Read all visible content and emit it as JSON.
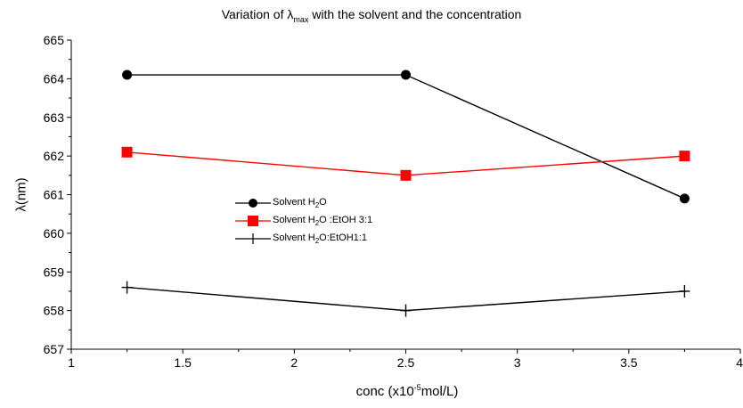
{
  "chart_data": {
    "type": "line",
    "title_prefix": "Variation of λ",
    "title_sub": "max",
    "title_suffix": " with the solvent and the concentration",
    "xlabel_prefix": "conc (x10",
    "xlabel_sup": "-5",
    "xlabel_suffix": "mol/L)",
    "ylabel": "λ(nm)",
    "xlim": [
      1,
      4
    ],
    "ylim": [
      657,
      665
    ],
    "xticks": [
      1,
      1.5,
      2,
      2.5,
      3,
      3.5,
      4
    ],
    "xtick_labels": [
      "1",
      "1.5",
      "2",
      "2.5",
      "3",
      "3.5",
      "4"
    ],
    "yticks": [
      657,
      658,
      659,
      660,
      661,
      662,
      663,
      664,
      665
    ],
    "ytick_labels": [
      "657",
      "658",
      "659",
      "660",
      "661",
      "662",
      "663",
      "664",
      "665"
    ],
    "x": [
      1.25,
      2.5,
      3.75
    ],
    "series": [
      {
        "name_prefix": "Solvent H",
        "name_sub": "2",
        "name_suffix": "O",
        "values": [
          664.1,
          664.1,
          660.9
        ],
        "color": "#000000",
        "marker": "circle"
      },
      {
        "name_prefix": "Solvent H",
        "name_sub": "2",
        "name_suffix": "O :EtOH 3:1",
        "values": [
          662.1,
          661.5,
          662.0
        ],
        "color": "#ff0000",
        "marker": "square"
      },
      {
        "name_prefix": "Solvent H",
        "name_sub": "2",
        "name_suffix": "O:EtOH1:1",
        "values": [
          658.6,
          658.0,
          658.5
        ],
        "color": "#000000",
        "marker": "plus"
      }
    ],
    "legend_position": "center-left",
    "grid": false
  }
}
